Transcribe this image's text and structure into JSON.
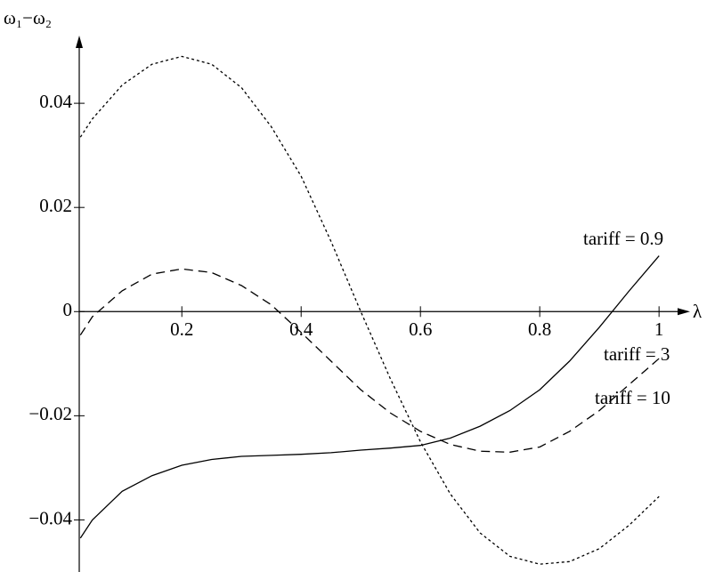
{
  "chart_data": {
    "type": "line",
    "y_label": "ω₁−ω₂",
    "x_label": "λ",
    "x": [
      0.03,
      0.05,
      0.1,
      0.15,
      0.2,
      0.25,
      0.3,
      0.35,
      0.4,
      0.45,
      0.5,
      0.55,
      0.6,
      0.65,
      0.7,
      0.75,
      0.8,
      0.85,
      0.9,
      0.95,
      1
    ],
    "series": [
      {
        "name": "tariff = 0.9",
        "color": "#000000",
        "dash": "none",
        "values": [
          -0.0435,
          -0.04,
          -0.0345,
          -0.0315,
          -0.0295,
          -0.0284,
          -0.0278,
          -0.0276,
          -0.0274,
          -0.0271,
          -0.0266,
          -0.0262,
          -0.0257,
          -0.0243,
          -0.022,
          -0.019,
          -0.015,
          -0.0095,
          -0.003,
          0.004,
          0.0107
        ]
      },
      {
        "name": "tariff = 3",
        "color": "#000000",
        "dash": "10,6",
        "values": [
          -0.0045,
          -0.001,
          0.004,
          0.0072,
          0.0082,
          0.0075,
          0.005,
          0.0013,
          -0.004,
          -0.0095,
          -0.015,
          -0.0195,
          -0.023,
          -0.0255,
          -0.0268,
          -0.027,
          -0.026,
          -0.023,
          -0.019,
          -0.014,
          -0.009
        ]
      },
      {
        "name": "tariff = 10",
        "color": "#000000",
        "dash": "3,3",
        "values": [
          0.0335,
          0.037,
          0.0435,
          0.0475,
          0.049,
          0.0475,
          0.043,
          0.0355,
          0.026,
          0.0135,
          0,
          -0.013,
          -0.025,
          -0.035,
          -0.0425,
          -0.047,
          -0.0485,
          -0.048,
          -0.0455,
          -0.041,
          -0.0355
        ]
      }
    ],
    "xlim": [
      0.028,
      1.052
    ],
    "ylim": [
      -0.05,
      0.053
    ],
    "xticks": [
      0.2,
      0.4,
      0.6,
      0.8,
      1
    ],
    "yticks": [
      {
        "value": -0.04,
        "label": "−0.04"
      },
      {
        "value": -0.02,
        "label": "−0.02"
      },
      0,
      0.02,
      0.04
    ]
  }
}
